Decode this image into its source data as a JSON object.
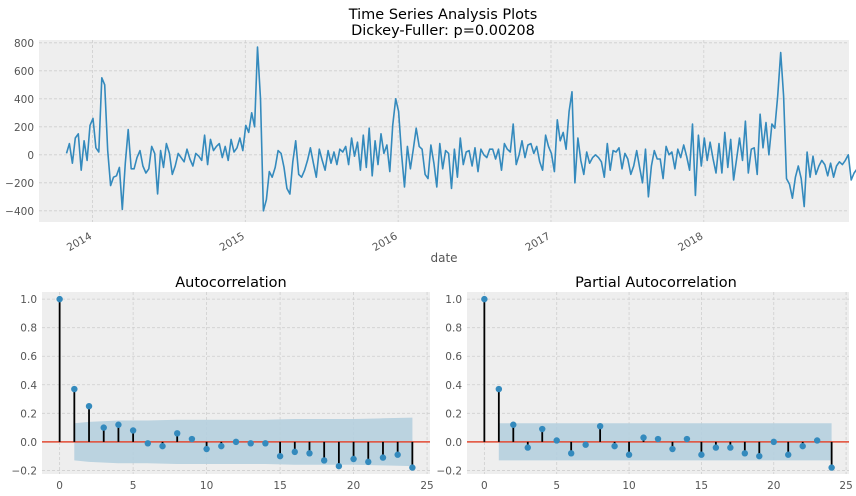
{
  "figure": {
    "title_line1": "Time Series Analysis Plots",
    "title_line2": "Dickey-Fuller: p=0.00208"
  },
  "colors": {
    "background": "#eeeeee",
    "grid": "#cfcfcf",
    "line": "#348abd",
    "stem": "#000000",
    "zero_line": "#e24a33",
    "confidence": "#b5cfde"
  },
  "chart_data": [
    {
      "type": "line",
      "title": "",
      "xlabel": "date",
      "ylabel": "",
      "xlim": [
        2013.65,
        2018.95
      ],
      "ylim": [
        -480,
        820
      ],
      "x_ticks": [
        2014,
        2015,
        2016,
        2017,
        2018
      ],
      "x_tick_labels": [
        "2014",
        "2015",
        "2016",
        "2017",
        "2018"
      ],
      "y_ticks": [
        -400,
        -200,
        0,
        200,
        400,
        600,
        800
      ],
      "y_tick_labels": [
        "−400",
        "−200",
        "0",
        "200",
        "400",
        "600",
        "800"
      ],
      "grid": true,
      "series": [
        {
          "start": 2013.83,
          "step_years": 0.01923,
          "values": [
            10,
            80,
            -60,
            120,
            150,
            -110,
            100,
            -40,
            210,
            260,
            50,
            20,
            550,
            500,
            30,
            -220,
            -160,
            -150,
            -90,
            -390,
            -60,
            180,
            -100,
            -100,
            -20,
            30,
            -80,
            -130,
            -100,
            60,
            10,
            -280,
            30,
            -90,
            80,
            10,
            -140,
            -80,
            10,
            -20,
            -50,
            40,
            -30,
            -80,
            10,
            -10,
            -40,
            140,
            -70,
            110,
            30,
            60,
            80,
            -20,
            60,
            -40,
            110,
            20,
            50,
            120,
            30,
            210,
            160,
            300,
            200,
            770,
            400,
            -400,
            -320,
            -120,
            -160,
            -90,
            30,
            10,
            -90,
            -240,
            -280,
            -50,
            100,
            -140,
            -160,
            -110,
            -40,
            50,
            -60,
            -160,
            40,
            -40,
            -110,
            30,
            -60,
            20,
            -70,
            40,
            20,
            60,
            -70,
            120,
            -10,
            90,
            -110,
            140,
            -90,
            190,
            -150,
            100,
            -70,
            150,
            10,
            70,
            -120,
            210,
            400,
            310,
            10,
            -230,
            60,
            -100,
            40,
            190,
            60,
            40,
            -140,
            -170,
            70,
            -60,
            -230,
            80,
            -100,
            30,
            10,
            -240,
            40,
            -160,
            120,
            -70,
            20,
            30,
            -80,
            50,
            -120,
            40,
            0,
            -20,
            40,
            40,
            -30,
            40,
            -110,
            80,
            40,
            20,
            220,
            -70,
            0,
            100,
            -20,
            70,
            80,
            10,
            60,
            -50,
            -110,
            140,
            60,
            10,
            -120,
            250,
            100,
            160,
            40,
            310,
            450,
            -200,
            120,
            -40,
            -140,
            20,
            -60,
            -20,
            0,
            -20,
            -50,
            -160,
            80,
            -110,
            30,
            20,
            50,
            -100,
            10,
            -30,
            -140,
            -80,
            30,
            -90,
            -200,
            40,
            -300,
            -80,
            30,
            -30,
            -30,
            -170,
            60,
            0,
            20,
            -100,
            40,
            -20,
            70,
            -10,
            -110,
            220,
            -290,
            140,
            -80,
            120,
            -40,
            90,
            -30,
            -130,
            80,
            -130,
            160,
            -90,
            110,
            -180,
            -30,
            120,
            -40,
            240,
            -130,
            40,
            50,
            -140,
            290,
            50,
            230,
            0,
            220,
            190,
            420,
            730,
            420,
            -170,
            -210,
            -310,
            -160,
            -80,
            -170,
            -370,
            20,
            -160,
            -10,
            -140,
            -80,
            -40,
            -70,
            -150,
            -60,
            -160,
            -80,
            -50,
            -70,
            -40,
            0,
            -180,
            -130,
            -100,
            10
          ]
        }
      ]
    },
    {
      "type": "stem",
      "title": "Autocorrelation",
      "xlim": [
        -1.2,
        25.2
      ],
      "ylim": [
        -0.225,
        1.05
      ],
      "x_ticks": [
        0,
        5,
        10,
        15,
        20,
        25
      ],
      "x_tick_labels": [
        "0",
        "5",
        "10",
        "15",
        "20",
        "25"
      ],
      "y_ticks": [
        -0.2,
        0.0,
        0.2,
        0.4,
        0.6,
        0.8,
        1.0
      ],
      "y_tick_labels": [
        "−0.2",
        "0.0",
        "0.2",
        "0.4",
        "0.6",
        "0.8",
        "1.0"
      ],
      "grid": true,
      "lags": [
        0,
        1,
        2,
        3,
        4,
        5,
        6,
        7,
        8,
        9,
        10,
        11,
        12,
        13,
        14,
        15,
        16,
        17,
        18,
        19,
        20,
        21,
        22,
        23,
        24
      ],
      "values": [
        1.0,
        0.37,
        0.25,
        0.1,
        0.12,
        0.08,
        -0.01,
        -0.03,
        0.06,
        0.02,
        -0.05,
        -0.03,
        0.0,
        -0.01,
        -0.01,
        -0.1,
        -0.07,
        -0.08,
        -0.13,
        -0.17,
        -0.12,
        -0.14,
        -0.11,
        -0.09,
        -0.18
      ],
      "confidence": {
        "lags": [
          1,
          2,
          4,
          6,
          8,
          10,
          12,
          14,
          16,
          18,
          20,
          22,
          24
        ],
        "upper": [
          0.13,
          0.14,
          0.15,
          0.15,
          0.155,
          0.155,
          0.155,
          0.155,
          0.16,
          0.16,
          0.16,
          0.165,
          0.17
        ],
        "lower": [
          -0.13,
          -0.14,
          -0.15,
          -0.15,
          -0.155,
          -0.155,
          -0.155,
          -0.155,
          -0.16,
          -0.16,
          -0.16,
          -0.165,
          -0.17
        ]
      }
    },
    {
      "type": "stem",
      "title": "Partial Autocorrelation",
      "xlim": [
        -1.2,
        25.2
      ],
      "ylim": [
        -0.225,
        1.05
      ],
      "x_ticks": [
        0,
        5,
        10,
        15,
        20,
        25
      ],
      "x_tick_labels": [
        "0",
        "5",
        "10",
        "15",
        "20",
        "25"
      ],
      "y_ticks": [
        -0.2,
        0.0,
        0.2,
        0.4,
        0.6,
        0.8,
        1.0
      ],
      "y_tick_labels": [
        "−0.2",
        "0.0",
        "0.2",
        "0.4",
        "0.6",
        "0.8",
        "1.0"
      ],
      "grid": true,
      "lags": [
        0,
        1,
        2,
        3,
        4,
        5,
        6,
        7,
        8,
        9,
        10,
        11,
        12,
        13,
        14,
        15,
        16,
        17,
        18,
        19,
        20,
        21,
        22,
        23,
        24
      ],
      "values": [
        1.0,
        0.37,
        0.12,
        -0.04,
        0.09,
        0.01,
        -0.08,
        -0.02,
        0.11,
        -0.03,
        -0.09,
        0.03,
        0.02,
        -0.05,
        0.02,
        -0.09,
        -0.04,
        -0.04,
        -0.08,
        -0.1,
        0.0,
        -0.09,
        -0.03,
        0.01,
        -0.18
      ],
      "confidence": {
        "lags": [
          1,
          24
        ],
        "upper": [
          0.13,
          0.13
        ],
        "lower": [
          -0.13,
          -0.13
        ]
      }
    }
  ]
}
